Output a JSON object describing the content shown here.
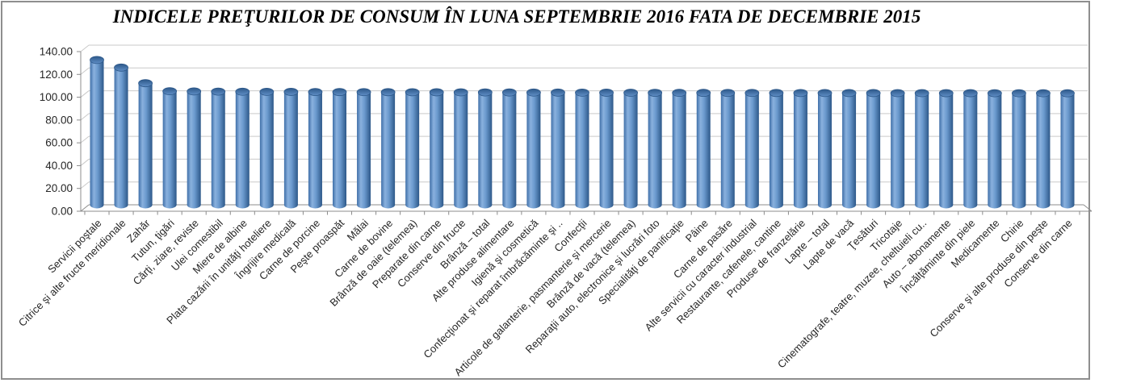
{
  "title": "INDICELE PREŢURILOR DE CONSUM ÎN LUNA SEPTEMBRIE 2016 FATA DE DECEMBRIE 2015",
  "colors": {
    "bar_main": "#4F81BD",
    "bar_edge": "#2d5889",
    "bar_highlight": "#8ab1de",
    "cap_fill_dark": "#2d5889",
    "cap_fill_light": "#5f8ec6",
    "grid": "#c9c9c9",
    "axis": "#8c8c8c",
    "frame_border": "#8e8e8e",
    "text": "#262626",
    "title_color": "#000000",
    "background": "#ffffff"
  },
  "y_axis": {
    "min": 0,
    "max": 140,
    "step": 20,
    "tick_labels": [
      "0.00",
      "20.00",
      "40.00",
      "60.00",
      "80.00",
      "100.00",
      "120.00",
      "140.00"
    ]
  },
  "chart_data": {
    "type": "bar",
    "style": "3d-cylinder",
    "title": "INDICELE PREŢURILOR DE CONSUM ÎN LUNA SEPTEMBRIE 2016 FATA DE DECEMBRIE 2015",
    "xlabel": "",
    "ylabel": "",
    "ylim": [
      0,
      140
    ],
    "ytick_step": 20,
    "grid": true,
    "legend": false,
    "categories": [
      "Servicii poştale",
      "Citrice şi alte fructe meridionale",
      "Zahăr",
      "Tutun, ţigări",
      "Cărţi, ziare, reviste",
      "Ulei comestibil",
      "Miere de albine",
      "Plata cazării în unităţi hoteliere",
      "Îngrijire medicală",
      "Carne de porcine",
      "Peşte proaspăt",
      "Mălai",
      "Carne de bovine",
      "Brânză de oaie (telemea)",
      "Preparate din carne",
      "Conserve din fructe",
      "Brânză – total",
      "Alte produse alimentare",
      "Igienă şi cosmetică",
      "Confecţionat şi reparat îmbrăcăminte şi ..",
      "Confecţii",
      "Articole de galanterie, pasmanterie şi mercerie",
      "Brânză de vacă (telemea)",
      "Reparaţii auto, electronice şi lucrări foto",
      "Specialităţi de panificaţie",
      "Pâine",
      "Carne de pasăre",
      "Alte servicii cu caracter industrial",
      "Restaurante, cafenele, cantine",
      "Produse de franzelărie",
      "Lapte – total",
      "Lapte de vacă",
      "Ţesături",
      "Tricotaje",
      "Cinematografe, teatre, muzee, cheltuieli cu..",
      "Auto – abonamente",
      "Încălţăminte din piele",
      "Medicamente",
      "Chirie",
      "Conserve şi alte produse din peşte",
      "Conserve din carne"
    ],
    "values": [
      130.2,
      123.5,
      109.8,
      102.8,
      102.6,
      102.45,
      102.35,
      102.25,
      102.2,
      102.1,
      102.05,
      102.0,
      101.95,
      101.9,
      101.85,
      101.8,
      101.75,
      101.7,
      101.65,
      101.6,
      101.55,
      101.5,
      101.45,
      101.4,
      101.38,
      101.35,
      101.3,
      101.28,
      101.25,
      101.22,
      101.2,
      101.18,
      101.15,
      101.12,
      101.1,
      101.08,
      101.06,
      101.04,
      101.02,
      101.01,
      101.0
    ]
  }
}
